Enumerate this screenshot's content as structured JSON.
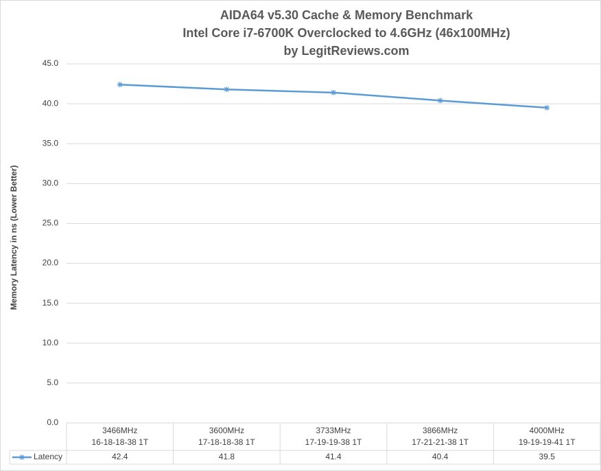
{
  "chart_data": {
    "type": "line",
    "title": [
      "AIDA64 v5.30 Cache & Memory Benchmark",
      "Intel Core i7-6700K Overclocked to 4.6GHz (46x100MHz)",
      "by LegitReviews.com"
    ],
    "y_label": "Memory Latency in ns (Lower Better)",
    "categories": [
      [
        "3466MHz",
        "16-18-18-38 1T"
      ],
      [
        "3600MHz",
        "17-18-18-38 1T"
      ],
      [
        "3733MHz",
        "17-19-19-38 1T"
      ],
      [
        "3866MHz",
        "17-21-21-38 1T"
      ],
      [
        "4000MHz",
        "19-19-19-41 1T"
      ]
    ],
    "series": [
      {
        "name": "Latency",
        "color": "#5b9bd5",
        "values": [
          42.4,
          41.8,
          41.4,
          40.4,
          39.5
        ]
      }
    ],
    "ylim": [
      0,
      45
    ],
    "yticks": [
      {
        "value": 0,
        "label": "0.0"
      },
      {
        "value": 5,
        "label": "5.0"
      },
      {
        "value": 10,
        "label": "10.0"
      },
      {
        "value": 15,
        "label": "15.0"
      },
      {
        "value": 20,
        "label": "20.0"
      },
      {
        "value": 25,
        "label": "25.0"
      },
      {
        "value": 30,
        "label": "30.0"
      },
      {
        "value": 35,
        "label": "35.0"
      },
      {
        "value": 40,
        "label": "40.0"
      },
      {
        "value": 45,
        "label": "45.0"
      }
    ],
    "grid": true,
    "data_table": true
  }
}
